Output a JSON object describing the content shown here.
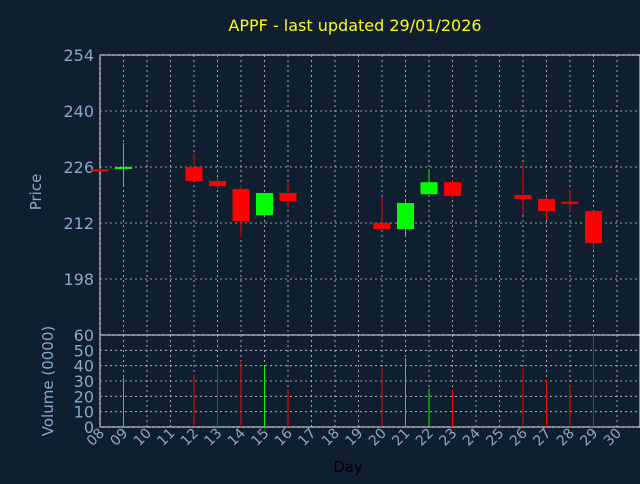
{
  "colors": {
    "background": "#0f1f30",
    "title": "#ffff00",
    "axis_text": "#8aa8c8",
    "grid": "#c8c8c8",
    "frame": "#ffffff",
    "up": "#00ff00",
    "down": "#ff0000"
  },
  "chart_data": [
    {
      "type": "candlestick",
      "title": "APPF - last updated 29/01/2026",
      "ylabel": "Price",
      "ylim": [
        184,
        254
      ],
      "yticks": [
        198,
        212,
        226,
        240,
        254
      ],
      "grid": true,
      "candles": [
        {
          "day": "08",
          "open": 225.4,
          "high": 225.6,
          "low": 225.0,
          "close": 225.2
        },
        {
          "day": "09",
          "open": 225.6,
          "high": 232.0,
          "low": 221.5,
          "close": 226.0
        },
        {
          "day": "12",
          "open": 226.0,
          "high": 229.5,
          "low": 222.5,
          "close": 222.5
        },
        {
          "day": "13",
          "open": 222.5,
          "high": 223.5,
          "low": 220.8,
          "close": 221.2
        },
        {
          "day": "14",
          "open": 220.5,
          "high": 221.5,
          "low": 208.5,
          "close": 212.5
        },
        {
          "day": "15",
          "open": 214.0,
          "high": 219.5,
          "low": 214.0,
          "close": 219.5
        },
        {
          "day": "16",
          "open": 219.5,
          "high": 222.0,
          "low": 216.0,
          "close": 217.5
        },
        {
          "day": "20",
          "open": 212.0,
          "high": 218.5,
          "low": 210.5,
          "close": 210.5
        },
        {
          "day": "21",
          "open": 210.5,
          "high": 218.0,
          "low": 208.5,
          "close": 217.0
        },
        {
          "day": "22",
          "open": 219.2,
          "high": 225.5,
          "low": 219.2,
          "close": 222.2
        },
        {
          "day": "23",
          "open": 222.2,
          "high": 222.8,
          "low": 218.2,
          "close": 218.8
        },
        {
          "day": "26",
          "open": 219.0,
          "high": 227.0,
          "low": 214.0,
          "close": 218.0
        },
        {
          "day": "27",
          "open": 218.0,
          "high": 218.5,
          "low": 213.0,
          "close": 215.0
        },
        {
          "day": "28",
          "open": 217.3,
          "high": 220.3,
          "low": 214.8,
          "close": 216.8
        },
        {
          "day": "29",
          "open": 215.0,
          "high": 215.0,
          "low": 205.5,
          "close": 207.0
        }
      ]
    },
    {
      "type": "bar",
      "ylabel": "Volume (0000)",
      "xlabel": "Day",
      "ylim": [
        0,
        60
      ],
      "yticks": [
        0,
        10,
        20,
        30,
        40,
        50,
        60
      ],
      "categories": [
        "08",
        "09",
        "10",
        "11",
        "12",
        "13",
        "14",
        "15",
        "16",
        "17",
        "18",
        "19",
        "20",
        "21",
        "22",
        "23",
        "24",
        "25",
        "26",
        "27",
        "28",
        "29",
        "30"
      ],
      "grid": true,
      "bars": [
        {
          "day": "09",
          "value": 32,
          "direction": "up"
        },
        {
          "day": "12",
          "value": 34,
          "direction": "down"
        },
        {
          "day": "13",
          "value": 38,
          "direction": "down"
        },
        {
          "day": "14",
          "value": 43,
          "direction": "down"
        },
        {
          "day": "15",
          "value": 40,
          "direction": "up"
        },
        {
          "day": "16",
          "value": 24,
          "direction": "down"
        },
        {
          "day": "20",
          "value": 38,
          "direction": "down"
        },
        {
          "day": "21",
          "value": 45,
          "direction": "up"
        },
        {
          "day": "22",
          "value": 25,
          "direction": "up"
        },
        {
          "day": "23",
          "value": 24,
          "direction": "down"
        },
        {
          "day": "26",
          "value": 38,
          "direction": "down"
        },
        {
          "day": "27",
          "value": 31,
          "direction": "down"
        },
        {
          "day": "28",
          "value": 27,
          "direction": "down"
        },
        {
          "day": "29",
          "value": 60,
          "direction": "down"
        }
      ]
    }
  ]
}
